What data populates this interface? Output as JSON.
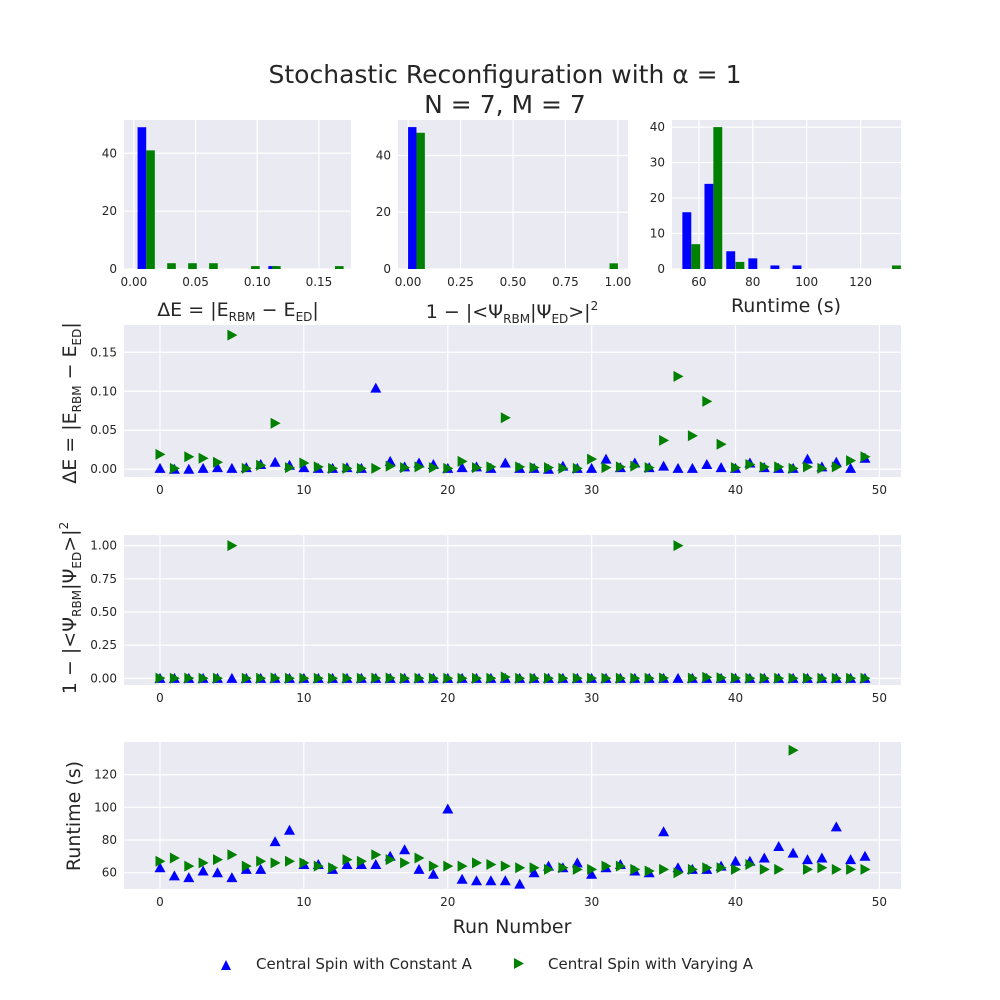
{
  "title": "Stochastic Reconfiguration with α = 1",
  "title_line2": "N = 7, M = 7",
  "colors": {
    "constant": "#0000ff",
    "varying": "#008000",
    "panel_bg": "#eaeaf2",
    "grid": "#ffffff"
  },
  "legend": {
    "constant_label": "Central Spin with Constant A",
    "varying_label": "Central Spin with Varying A",
    "placement": "bottom-center"
  },
  "chart_data": [
    {
      "id": "hist_energy",
      "type": "bar",
      "xlabel": "ΔE = |E_RBM − E_ED|",
      "xlim": [
        -0.008,
        0.176
      ],
      "ylim": [
        0,
        51.5
      ],
      "xticks": [
        0,
        0.05,
        0.1,
        0.15
      ],
      "xtick_labels": [
        "0.00",
        "0.05",
        "0.10",
        "0.15"
      ],
      "yticks": [
        0,
        20,
        40
      ],
      "ytick_labels": [
        "0",
        "20",
        "40"
      ],
      "bar_width": 0.007,
      "series": [
        {
          "name": "Central Spin with Constant A",
          "x": [
            0.0065,
            0.1125
          ],
          "values": [
            49,
            1
          ]
        },
        {
          "name": "Central Spin with Varying A",
          "x": [
            0.0135,
            0.0305,
            0.0475,
            0.0645,
            0.0985,
            0.1155,
            0.1665
          ],
          "values": [
            41,
            2,
            2,
            2,
            1,
            1,
            1
          ]
        }
      ]
    },
    {
      "id": "hist_fidelity",
      "type": "bar",
      "xlabel": "1 − |<Ψ_RBM|Ψ_ED>|^2",
      "xlim": [
        -0.048,
        1.048
      ],
      "ylim": [
        0,
        52.5
      ],
      "xticks": [
        0,
        0.25,
        0.5,
        0.75,
        1.0
      ],
      "xtick_labels": [
        "0.00",
        "0.25",
        "0.50",
        "0.75",
        "1.00"
      ],
      "yticks": [
        0,
        20,
        40
      ],
      "ytick_labels": [
        "0",
        "20",
        "40"
      ],
      "bar_width": 0.04,
      "series": [
        {
          "name": "Central Spin with Constant A",
          "x": [
            0.02
          ],
          "values": [
            50
          ]
        },
        {
          "name": "Central Spin with Varying A",
          "x": [
            0.06,
            0.98
          ],
          "values": [
            48,
            2
          ]
        }
      ]
    },
    {
      "id": "hist_runtime",
      "type": "bar",
      "xlabel": "Runtime (s)",
      "xlim": [
        50,
        135
      ],
      "ylim": [
        0,
        42
      ],
      "xticks": [
        60,
        80,
        100,
        120
      ],
      "xtick_labels": [
        "60",
        "80",
        "100",
        "120"
      ],
      "yticks": [
        0,
        10,
        20,
        30,
        40
      ],
      "ytick_labels": [
        "0",
        "10",
        "20",
        "30",
        "40"
      ],
      "bar_width": 3.3,
      "series": [
        {
          "name": "Central Spin with Constant A",
          "x": [
            55.5,
            63.7,
            71.8,
            80.0,
            88.2,
            96.4
          ],
          "values": [
            16,
            24,
            5,
            3,
            1,
            1
          ]
        },
        {
          "name": "Central Spin with Varying A",
          "x": [
            58.8,
            67.0,
            75.2,
            133.3
          ],
          "values": [
            7,
            40,
            2,
            1
          ]
        }
      ]
    },
    {
      "id": "scatter_energy",
      "type": "scatter",
      "xlabel": "",
      "ylabel": "ΔE = |E_RBM − E_ED|",
      "xlim": [
        -2.5,
        51.5
      ],
      "ylim": [
        -0.01,
        0.185
      ],
      "xticks": [
        0,
        10,
        20,
        30,
        40,
        50
      ],
      "xtick_labels": [
        "0",
        "10",
        "20",
        "30",
        "40",
        "50"
      ],
      "yticks": [
        0,
        0.05,
        0.1,
        0.15
      ],
      "ytick_labels": [
        "0.00",
        "0.05",
        "0.10",
        "0.15"
      ],
      "series": [
        {
          "name": "Central Spin with Constant A",
          "marker": "triangle-up",
          "x": [
            0,
            1,
            2,
            3,
            4,
            5,
            6,
            7,
            8,
            9,
            10,
            11,
            12,
            13,
            14,
            15,
            16,
            17,
            18,
            19,
            20,
            21,
            22,
            23,
            24,
            25,
            26,
            27,
            28,
            29,
            30,
            31,
            32,
            33,
            34,
            35,
            36,
            37,
            38,
            39,
            40,
            41,
            42,
            43,
            44,
            45,
            46,
            47,
            48,
            49
          ],
          "y": [
            0.001,
            0,
            0,
            0.001,
            0.002,
            0.001,
            0.002,
            0.006,
            0.009,
            0.005,
            0.002,
            0.001,
            0.001,
            0.002,
            0.001,
            0.104,
            0.01,
            0.003,
            0.008,
            0.006,
            0.001,
            0.002,
            0.003,
            0.001,
            0.008,
            0.001,
            0.001,
            0,
            0.004,
            0.001,
            0.001,
            0.013,
            0.002,
            0.008,
            0.002,
            0.004,
            0.001,
            0.001,
            0.006,
            0.002,
            0.001,
            0.008,
            0.002,
            0.001,
            0.001,
            0.013,
            0.003,
            0.009,
            0.001,
            0.014
          ]
        },
        {
          "name": "Central Spin with Varying A",
          "marker": "triangle-right",
          "x": [
            0,
            1,
            2,
            3,
            4,
            5,
            6,
            7,
            8,
            9,
            10,
            11,
            12,
            13,
            14,
            15,
            16,
            17,
            18,
            19,
            20,
            21,
            22,
            23,
            24,
            25,
            26,
            27,
            28,
            29,
            30,
            31,
            32,
            33,
            34,
            35,
            36,
            37,
            38,
            39,
            40,
            41,
            42,
            43,
            44,
            45,
            46,
            47,
            48,
            49
          ],
          "y": [
            0.019,
            0.001,
            0.016,
            0.014,
            0.009,
            0.172,
            0.001,
            0.005,
            0.059,
            0.002,
            0.008,
            0.003,
            0.001,
            0.001,
            0.001,
            0.001,
            0.004,
            0.002,
            0.003,
            0.002,
            0.001,
            0.01,
            0.002,
            0.003,
            0.066,
            0.003,
            0.002,
            0.002,
            0.001,
            0.001,
            0.013,
            0.002,
            0.003,
            0.004,
            0.002,
            0.037,
            0.119,
            0.043,
            0.087,
            0.032,
            0.002,
            0.006,
            0.003,
            0.003,
            0.001,
            0.003,
            0.001,
            0.003,
            0.011,
            0.016
          ]
        }
      ]
    },
    {
      "id": "scatter_fidelity",
      "type": "scatter",
      "xlabel": "",
      "ylabel": "1 − |<Ψ_RBM|Ψ_ED>|^2",
      "xlim": [
        -2.5,
        51.5
      ],
      "ylim": [
        -0.05,
        1.08
      ],
      "xticks": [
        0,
        10,
        20,
        30,
        40,
        50
      ],
      "xtick_labels": [
        "0",
        "10",
        "20",
        "30",
        "40",
        "50"
      ],
      "yticks": [
        0,
        0.25,
        0.5,
        0.75,
        1.0
      ],
      "ytick_labels": [
        "0.00",
        "0.25",
        "0.50",
        "0.75",
        "1.00"
      ],
      "series": [
        {
          "name": "Central Spin with Constant A",
          "marker": "triangle-up",
          "x": [
            0,
            1,
            2,
            3,
            4,
            5,
            6,
            7,
            8,
            9,
            10,
            11,
            12,
            13,
            14,
            15,
            16,
            17,
            18,
            19,
            20,
            21,
            22,
            23,
            24,
            25,
            26,
            27,
            28,
            29,
            30,
            31,
            32,
            33,
            34,
            35,
            36,
            37,
            38,
            39,
            40,
            41,
            42,
            43,
            44,
            45,
            46,
            47,
            48,
            49
          ],
          "y": [
            0,
            0,
            0,
            0,
            0,
            0,
            0,
            0,
            0,
            0,
            0,
            0,
            0,
            0,
            0,
            0,
            0,
            0,
            0,
            0,
            0,
            0,
            0,
            0,
            0,
            0,
            0,
            0,
            0,
            0,
            0,
            0,
            0,
            0,
            0,
            0,
            0,
            0,
            0,
            0,
            0,
            0,
            0,
            0,
            0,
            0,
            0,
            0,
            0,
            0
          ]
        },
        {
          "name": "Central Spin with Varying A",
          "marker": "triangle-right",
          "x": [
            0,
            1,
            2,
            3,
            4,
            5,
            6,
            7,
            8,
            9,
            10,
            11,
            12,
            13,
            14,
            15,
            16,
            17,
            18,
            19,
            20,
            21,
            22,
            23,
            24,
            25,
            26,
            27,
            28,
            29,
            30,
            31,
            32,
            33,
            34,
            35,
            36,
            37,
            38,
            39,
            40,
            41,
            42,
            43,
            44,
            45,
            46,
            47,
            48,
            49
          ],
          "y": [
            0.002,
            0.001,
            0.002,
            0.001,
            0.001,
            1.0,
            0.001,
            0.001,
            0.003,
            0.001,
            0.001,
            0.001,
            0.001,
            0.001,
            0.001,
            0.002,
            0.003,
            0.001,
            0.001,
            0.001,
            0.001,
            0.001,
            0.001,
            0.001,
            0.01,
            0.001,
            0.001,
            0.001,
            0.001,
            0.001,
            0.002,
            0.001,
            0.001,
            0.001,
            0.001,
            0.003,
            1.0,
            0.002,
            0.008,
            0.005,
            0.003,
            0.001,
            0.001,
            0.001,
            0.001,
            0.001,
            0.001,
            0.001,
            0.001,
            0.001
          ]
        }
      ]
    },
    {
      "id": "scatter_runtime",
      "type": "scatter",
      "xlabel": "Run Number",
      "ylabel": "Runtime (s)",
      "xlim": [
        -2.5,
        51.5
      ],
      "ylim": [
        50,
        140
      ],
      "xticks": [
        0,
        10,
        20,
        30,
        40,
        50
      ],
      "xtick_labels": [
        "0",
        "10",
        "20",
        "30",
        "40",
        "50"
      ],
      "yticks": [
        60,
        80,
        100,
        120
      ],
      "ytick_labels": [
        "60",
        "80",
        "100",
        "120"
      ],
      "series": [
        {
          "name": "Central Spin with Constant A",
          "marker": "triangle-up",
          "x": [
            0,
            1,
            2,
            3,
            4,
            5,
            6,
            7,
            8,
            9,
            10,
            11,
            12,
            13,
            14,
            15,
            16,
            17,
            18,
            19,
            20,
            21,
            22,
            23,
            24,
            25,
            26,
            27,
            28,
            29,
            30,
            31,
            32,
            33,
            34,
            35,
            36,
            37,
            38,
            39,
            40,
            41,
            42,
            43,
            44,
            45,
            46,
            47,
            48,
            49
          ],
          "y": [
            63,
            58,
            57,
            61,
            60,
            57,
            62,
            62,
            79,
            86,
            65,
            65,
            62,
            65,
            65,
            65,
            70,
            74,
            62,
            59,
            99,
            56,
            55,
            55,
            55,
            53,
            60,
            64,
            63,
            66,
            59,
            63,
            65,
            61,
            60,
            85,
            63,
            62,
            62,
            64,
            67,
            67,
            69,
            76,
            72,
            68,
            69,
            88,
            68,
            70
          ]
        },
        {
          "name": "Central Spin with Varying A",
          "marker": "triangle-right",
          "x": [
            0,
            1,
            2,
            3,
            4,
            5,
            6,
            7,
            8,
            9,
            10,
            11,
            12,
            13,
            14,
            15,
            16,
            17,
            18,
            19,
            20,
            21,
            22,
            23,
            24,
            25,
            26,
            27,
            28,
            29,
            30,
            31,
            32,
            33,
            34,
            35,
            36,
            37,
            38,
            39,
            40,
            41,
            42,
            43,
            44,
            45,
            46,
            47,
            48,
            49
          ],
          "y": [
            67,
            69,
            64,
            66,
            68,
            71,
            64,
            67,
            66,
            67,
            66,
            64,
            63,
            68,
            67,
            71,
            68,
            66,
            69,
            64,
            64,
            64,
            66,
            65,
            64,
            63,
            63,
            62,
            63,
            62,
            62,
            64,
            64,
            62,
            61,
            62,
            60,
            62,
            63,
            63,
            62,
            65,
            62,
            62,
            135,
            62,
            63,
            62,
            62,
            62
          ]
        }
      ]
    }
  ]
}
